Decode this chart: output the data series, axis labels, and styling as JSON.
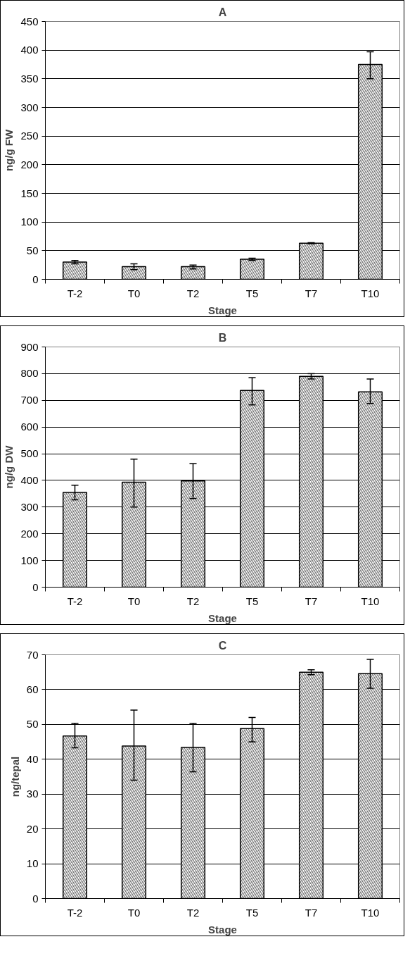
{
  "chart_data": [
    {
      "type": "bar",
      "title": "A",
      "xlabel": "Stage",
      "ylabel": "ng/g FW",
      "categories": [
        "T-2",
        "T0",
        "T2",
        "T5",
        "T7",
        "T10"
      ],
      "color": "#ffffff",
      "values": [
        30,
        22,
        22,
        35,
        63,
        375
      ],
      "errors": [
        [
          27,
          33
        ],
        [
          17,
          27
        ],
        [
          18,
          25
        ],
        [
          33,
          37
        ],
        [
          62,
          64
        ],
        [
          350,
          397
        ]
      ],
      "ylim": [
        0,
        450
      ],
      "yticks": [
        0,
        50,
        100,
        150,
        200,
        250,
        300,
        350,
        400,
        450
      ],
      "grid": "y"
    },
    {
      "type": "bar",
      "title": "B",
      "xlabel": "Stage",
      "ylabel": "ng/g DW",
      "categories": [
        "T-2",
        "T0",
        "T2",
        "T5",
        "T7",
        "T10"
      ],
      "color": "#ffffff",
      "values": [
        355,
        393,
        398,
        737,
        790,
        732
      ],
      "errors": [
        [
          327,
          382
        ],
        [
          300,
          480
        ],
        [
          332,
          463
        ],
        [
          683,
          785
        ],
        [
          780,
          800
        ],
        [
          688,
          780
        ]
      ],
      "ylim": [
        0,
        900
      ],
      "yticks": [
        0,
        100,
        200,
        300,
        400,
        500,
        600,
        700,
        800,
        900
      ],
      "grid": "y"
    },
    {
      "type": "bar",
      "title": "C",
      "xlabel": "Stage",
      "ylabel": "ng/tepal",
      "categories": [
        "T-2",
        "T0",
        "T2",
        "T5",
        "T7",
        "T10"
      ],
      "color": "#ffffff",
      "values": [
        46.7,
        43.8,
        43.4,
        48.8,
        65.0,
        64.6
      ],
      "errors": [
        [
          43.3,
          50.3
        ],
        [
          34.0,
          54.1
        ],
        [
          36.4,
          50.3
        ],
        [
          45.0,
          52.0
        ],
        [
          64.3,
          65.7
        ],
        [
          60.4,
          68.7
        ]
      ],
      "ylim": [
        0,
        70
      ],
      "yticks": [
        0,
        10,
        20,
        30,
        40,
        50,
        60,
        70
      ],
      "grid": "y"
    }
  ]
}
